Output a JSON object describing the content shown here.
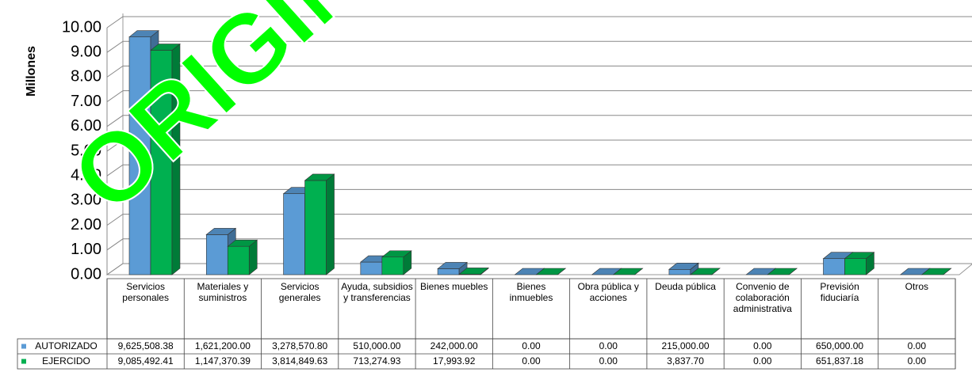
{
  "chart_data": {
    "type": "bar3d",
    "watermark": "ORIGINAL",
    "y_label": "Millones",
    "categories": [
      "Servicios personales",
      "Materiales y suministros",
      "Servicios generales",
      "Ayuda, subsidios y transferencias",
      "Bienes muebles",
      "Bienes inmuebles",
      "Obra pública y acciones",
      "Deuda pública",
      "Convenio de colaboración administrativa",
      "Previsión fiduciaría",
      "Otros"
    ],
    "series": [
      {
        "name": "AUTORIZADO",
        "color": "#5b9bd5",
        "values": [
          9.62550838,
          1.6212,
          3.2785708,
          0.51,
          0.242,
          0,
          0,
          0.215,
          0,
          0.65,
          0
        ],
        "value_labels": [
          "9,625,508.38",
          "1,621,200.00",
          "3,278,570.80",
          "510,000.00",
          "242,000.00",
          "0.00",
          "0.00",
          "215,000.00",
          "0.00",
          "650,000.00",
          "0.00"
        ]
      },
      {
        "name": "EJERCIDO",
        "color": "#00b050",
        "values": [
          9.08549241,
          1.14737039,
          3.81484963,
          0.71327493,
          0.01799392,
          0,
          0,
          0.0038377,
          0,
          0.65183718,
          0
        ],
        "value_labels": [
          "9,085,492.41",
          "1,147,370.39",
          "3,814,849.63",
          "713,274.93",
          "17,993.92",
          "0.00",
          "0.00",
          "3,837.70",
          "0.00",
          "651,837.18",
          "0.00"
        ]
      }
    ],
    "ylim": [
      0,
      10
    ],
    "yticks": [
      {
        "value": 0,
        "label": "0.00"
      },
      {
        "value": 1,
        "label": "1.00"
      },
      {
        "value": 2,
        "label": "2.00"
      },
      {
        "value": 3,
        "label": "3.00"
      },
      {
        "value": 4,
        "label": "4.00"
      },
      {
        "value": 5,
        "label": "5.00"
      },
      {
        "value": 6,
        "label": "6.00"
      },
      {
        "value": 7,
        "label": "7.00"
      },
      {
        "value": 8,
        "label": "8.00"
      },
      {
        "value": 9,
        "label": "9.00"
      },
      {
        "value": 10,
        "label": "10.00"
      }
    ],
    "grid": true
  }
}
